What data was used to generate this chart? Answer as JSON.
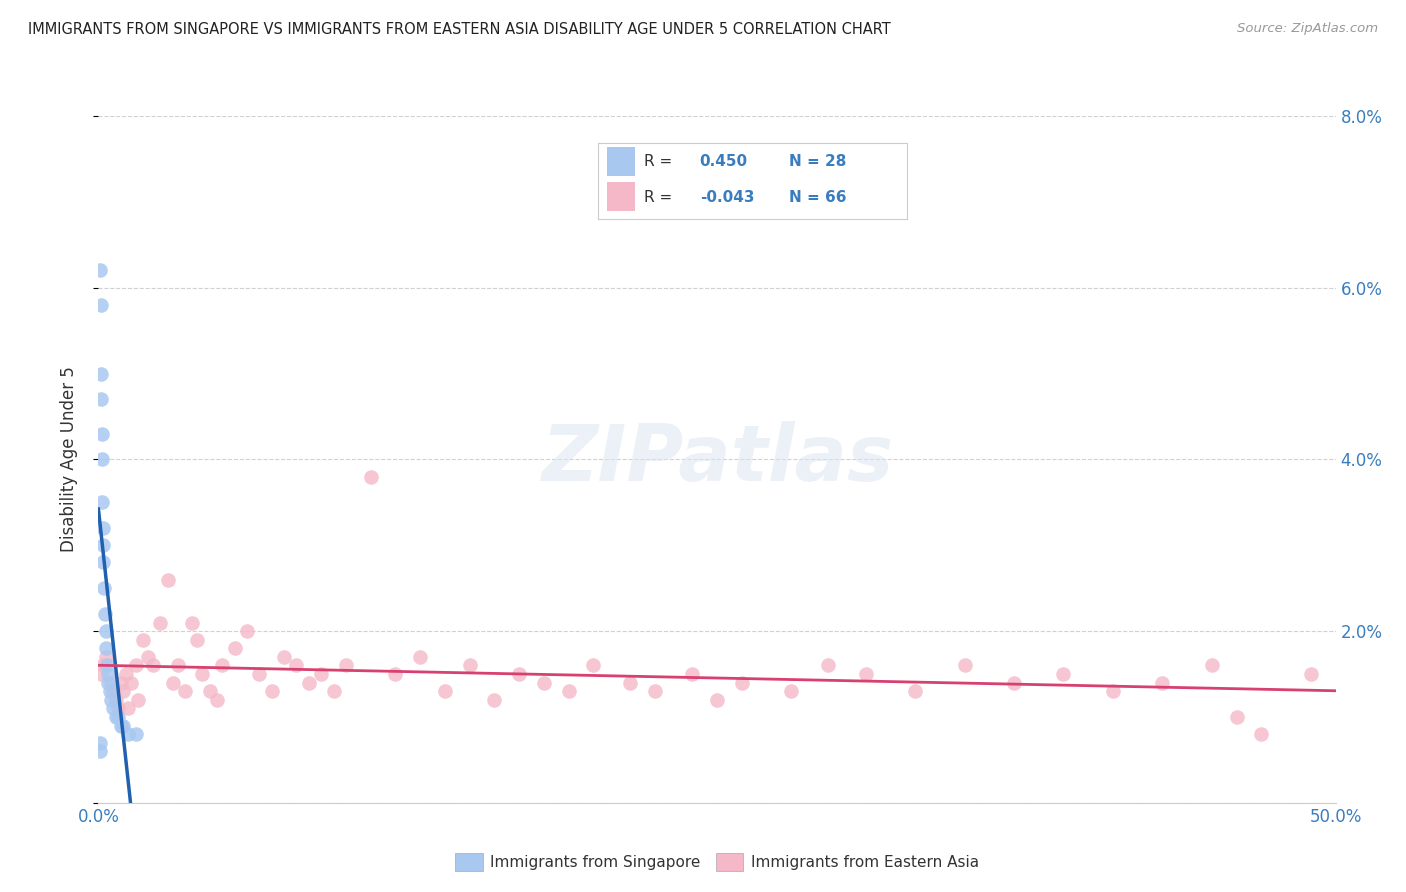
{
  "title": "IMMIGRANTS FROM SINGAPORE VS IMMIGRANTS FROM EASTERN ASIA DISABILITY AGE UNDER 5 CORRELATION CHART",
  "source": "Source: ZipAtlas.com",
  "ylabel": "Disability Age Under 5",
  "legend1_label": "Immigrants from Singapore",
  "legend2_label": "Immigrants from Eastern Asia",
  "legend1_R": "0.450",
  "legend1_N": "28",
  "legend2_R": "-0.043",
  "legend2_N": "66",
  "blue_color": "#a8c8f0",
  "pink_color": "#f4b8c8",
  "blue_line_color": "#2060b0",
  "pink_line_color": "#d84070",
  "bg_color": "#ffffff",
  "grid_color": "#cccccc",
  "xlim": [
    0.0,
    0.5
  ],
  "ylim": [
    0.0,
    0.08
  ],
  "yticks": [
    0.0,
    0.02,
    0.04,
    0.06,
    0.08
  ],
  "ytick_labels": [
    "",
    "2.0%",
    "4.0%",
    "6.0%",
    "8.0%"
  ],
  "singapore_x": [
    0.0005,
    0.0005,
    0.0008,
    0.001,
    0.001,
    0.0012,
    0.0013,
    0.0015,
    0.0015,
    0.0018,
    0.002,
    0.002,
    0.0022,
    0.0025,
    0.003,
    0.003,
    0.0035,
    0.004,
    0.004,
    0.0045,
    0.005,
    0.006,
    0.007,
    0.008,
    0.009,
    0.01,
    0.012,
    0.015
  ],
  "singapore_y": [
    0.007,
    0.006,
    0.062,
    0.058,
    0.05,
    0.047,
    0.043,
    0.04,
    0.035,
    0.032,
    0.03,
    0.028,
    0.025,
    0.022,
    0.02,
    0.018,
    0.016,
    0.015,
    0.014,
    0.013,
    0.012,
    0.011,
    0.01,
    0.01,
    0.009,
    0.009,
    0.008,
    0.008
  ],
  "eastern_asia_x": [
    0.001,
    0.002,
    0.003,
    0.005,
    0.006,
    0.007,
    0.008,
    0.009,
    0.01,
    0.011,
    0.012,
    0.013,
    0.015,
    0.016,
    0.018,
    0.02,
    0.022,
    0.025,
    0.028,
    0.03,
    0.032,
    0.035,
    0.038,
    0.04,
    0.042,
    0.045,
    0.048,
    0.05,
    0.055,
    0.06,
    0.065,
    0.07,
    0.075,
    0.08,
    0.085,
    0.09,
    0.095,
    0.1,
    0.11,
    0.12,
    0.13,
    0.14,
    0.15,
    0.16,
    0.17,
    0.18,
    0.19,
    0.2,
    0.215,
    0.225,
    0.24,
    0.25,
    0.26,
    0.28,
    0.295,
    0.31,
    0.33,
    0.35,
    0.37,
    0.39,
    0.41,
    0.43,
    0.45,
    0.46,
    0.47,
    0.49
  ],
  "eastern_asia_y": [
    0.015,
    0.016,
    0.017,
    0.014,
    0.013,
    0.012,
    0.011,
    0.014,
    0.013,
    0.015,
    0.011,
    0.014,
    0.016,
    0.012,
    0.019,
    0.017,
    0.016,
    0.021,
    0.026,
    0.014,
    0.016,
    0.013,
    0.021,
    0.019,
    0.015,
    0.013,
    0.012,
    0.016,
    0.018,
    0.02,
    0.015,
    0.013,
    0.017,
    0.016,
    0.014,
    0.015,
    0.013,
    0.016,
    0.038,
    0.015,
    0.017,
    0.013,
    0.016,
    0.012,
    0.015,
    0.014,
    0.013,
    0.016,
    0.014,
    0.013,
    0.015,
    0.012,
    0.014,
    0.013,
    0.016,
    0.015,
    0.013,
    0.016,
    0.014,
    0.015,
    0.013,
    0.014,
    0.016,
    0.01,
    0.008,
    0.015
  ]
}
